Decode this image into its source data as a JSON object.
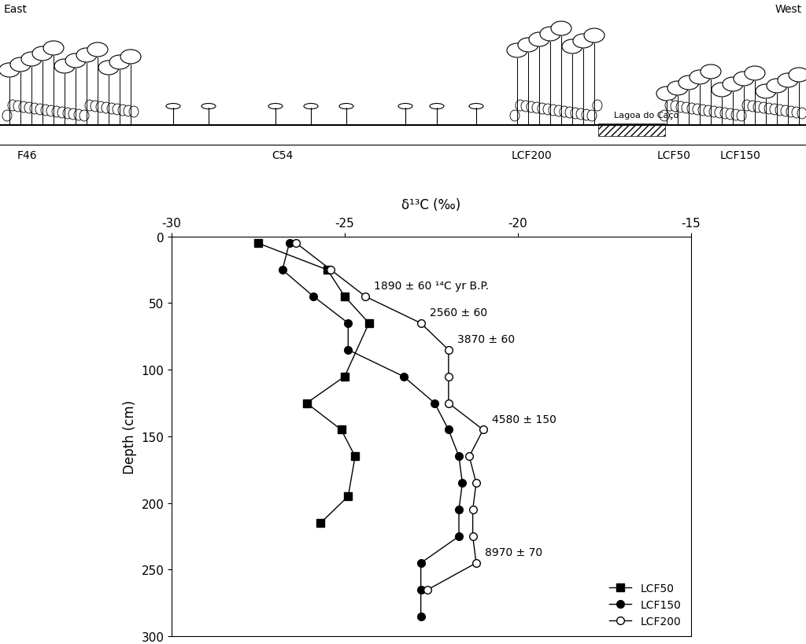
{
  "chart_data": {
    "type": "line",
    "x_label": "δ¹³C (‰)",
    "y_label": "Depth (cm)",
    "xlim": [
      -30,
      -15
    ],
    "xticks": [
      -30,
      -25,
      -20,
      -15
    ],
    "ylim": [
      300,
      0
    ],
    "yticks": [
      0,
      50,
      100,
      150,
      200,
      250,
      300
    ],
    "grid": false,
    "legend": "lower right",
    "series": [
      {
        "name": "LCF50",
        "color": "#000000",
        "marker": "square",
        "line_style": "solid",
        "x": [
          -27.5,
          -25.5,
          -25.0,
          -24.3,
          -25.0,
          -26.1,
          -25.1,
          -24.7,
          -24.9,
          -25.7
        ],
        "y": [
          5,
          25,
          45,
          65,
          105,
          125,
          145,
          165,
          195,
          215
        ]
      },
      {
        "name": "LCF150",
        "color": "#000000",
        "marker": "circle",
        "line_style": "solid",
        "x": [
          -26.6,
          -26.8,
          -25.9,
          -24.9,
          -24.9,
          -23.3,
          -22.4,
          -22.0,
          -21.7,
          -21.6,
          -21.7,
          -21.7,
          -22.8,
          -22.8,
          -22.8
        ],
        "y": [
          5,
          25,
          45,
          65,
          85,
          105,
          125,
          145,
          165,
          185,
          205,
          225,
          245,
          265,
          285
        ]
      },
      {
        "name": "LCF200",
        "color": "#000000",
        "marker": "open circle",
        "line_style": "solid",
        "x": [
          -26.4,
          -25.4,
          -24.4,
          -22.8,
          -22.0,
          -22.0,
          -22.0,
          -21.0,
          -21.4,
          -21.2,
          -21.3,
          -21.3,
          -21.2,
          -22.6
        ],
        "y": [
          5,
          25,
          45,
          65,
          85,
          105,
          125,
          145,
          165,
          185,
          205,
          225,
          245,
          265
        ],
        "annotations": [
          {
            "text": "1890 ± 60 ¹⁴C yr B.P.",
            "depth": 45
          },
          {
            "text": "2560 ± 60",
            "depth": 65
          },
          {
            "text": "3870 ± 60",
            "depth": 85
          },
          {
            "text": "4580 ± 150",
            "depth": 145
          },
          {
            "text": "8970 ± 70",
            "depth": 245
          }
        ]
      }
    ]
  },
  "transect": {
    "east": "East",
    "west": "West",
    "lake": "Lagoa do Caçó",
    "sites": [
      "F46",
      "C54",
      "LCF200",
      "LCF50",
      "LCF150"
    ]
  }
}
